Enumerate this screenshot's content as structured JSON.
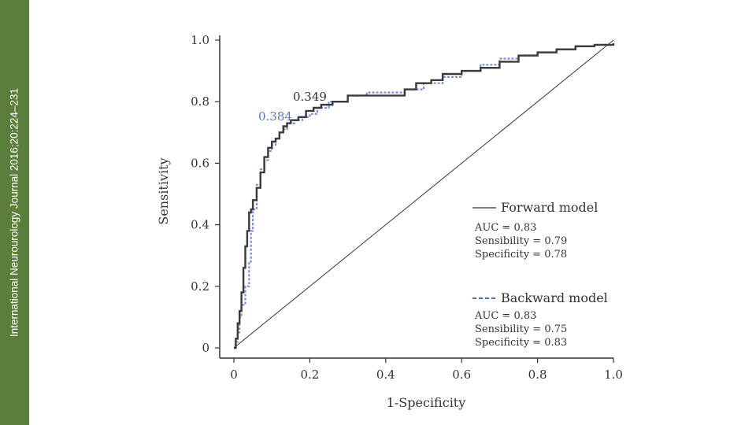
{
  "side_banner": {
    "text": "International Neurourology Journal 2016;20:224–231"
  },
  "chart_data": {
    "type": "line",
    "title": "",
    "xlabel": "1-Specificity",
    "ylabel": "Sensitivity",
    "xlim": [
      0,
      1
    ],
    "ylim": [
      0,
      1
    ],
    "x_ticks": [
      0,
      0.2,
      0.4,
      0.6,
      0.8,
      1.0
    ],
    "x_tick_labels": [
      "0",
      "0.2",
      "0.4",
      "0.6",
      "0.8",
      "1.0"
    ],
    "y_ticks": [
      0,
      0.2,
      0.4,
      0.6,
      0.8,
      1.0
    ],
    "y_tick_labels": [
      "0",
      "0.2",
      "0.4",
      "0.6",
      "0.8",
      "1.0"
    ],
    "grid": false,
    "series": [
      {
        "name": "Forward model",
        "style": "solid",
        "color": "#3a3a3a",
        "x": [
          0,
          0.005,
          0.01,
          0.015,
          0.02,
          0.025,
          0.03,
          0.035,
          0.04,
          0.045,
          0.05,
          0.06,
          0.07,
          0.08,
          0.09,
          0.1,
          0.11,
          0.12,
          0.13,
          0.14,
          0.15,
          0.17,
          0.19,
          0.21,
          0.23,
          0.26,
          0.3,
          0.35,
          0.4,
          0.45,
          0.48,
          0.52,
          0.55,
          0.6,
          0.65,
          0.7,
          0.75,
          0.8,
          0.85,
          0.9,
          0.95,
          1.0
        ],
        "y": [
          0,
          0.03,
          0.08,
          0.12,
          0.18,
          0.26,
          0.33,
          0.38,
          0.44,
          0.45,
          0.48,
          0.52,
          0.57,
          0.62,
          0.65,
          0.67,
          0.68,
          0.7,
          0.72,
          0.73,
          0.74,
          0.75,
          0.77,
          0.78,
          0.79,
          0.8,
          0.82,
          0.82,
          0.82,
          0.84,
          0.86,
          0.87,
          0.89,
          0.9,
          0.91,
          0.93,
          0.95,
          0.96,
          0.97,
          0.98,
          0.985,
          0.99
        ]
      },
      {
        "name": "Backward model",
        "style": "dashed",
        "color": "#7b8fd4",
        "x": [
          0,
          0.005,
          0.01,
          0.015,
          0.02,
          0.03,
          0.04,
          0.045,
          0.05,
          0.06,
          0.07,
          0.08,
          0.09,
          0.1,
          0.11,
          0.12,
          0.13,
          0.14,
          0.16,
          0.18,
          0.2,
          0.22,
          0.25,
          0.3,
          0.35,
          0.4,
          0.45,
          0.5,
          0.55,
          0.6,
          0.65,
          0.7,
          0.75,
          0.8,
          0.85,
          0.9,
          0.95,
          1.0
        ],
        "y": [
          0,
          0.02,
          0.05,
          0.1,
          0.14,
          0.2,
          0.28,
          0.38,
          0.45,
          0.53,
          0.58,
          0.61,
          0.64,
          0.66,
          0.68,
          0.7,
          0.71,
          0.73,
          0.74,
          0.75,
          0.76,
          0.78,
          0.8,
          0.82,
          0.83,
          0.83,
          0.84,
          0.86,
          0.88,
          0.9,
          0.92,
          0.94,
          0.95,
          0.96,
          0.97,
          0.98,
          0.985,
          0.99
        ]
      },
      {
        "name": "Reference",
        "style": "solid-thin",
        "color": "#333333",
        "x": [
          0,
          1
        ],
        "y": [
          0,
          1
        ]
      }
    ],
    "annotations": [
      {
        "text": "0.349",
        "x": 0.155,
        "y": 0.8,
        "color": "#333333"
      },
      {
        "text": "0.384",
        "x": 0.062,
        "y": 0.74,
        "color": "#5a78b8"
      }
    ],
    "legend": {
      "placement": "lower-right",
      "entries": [
        {
          "label": "Forward model",
          "style": "solid",
          "stats": [
            "AUC = 0.83",
            "Sensibility = 0.79",
            "Specificity = 0.78"
          ]
        },
        {
          "label": "Backward model",
          "style": "dashed",
          "stats": [
            "AUC = 0.83",
            "Sensibility = 0.75",
            "Specificity = 0.83"
          ]
        }
      ]
    }
  }
}
